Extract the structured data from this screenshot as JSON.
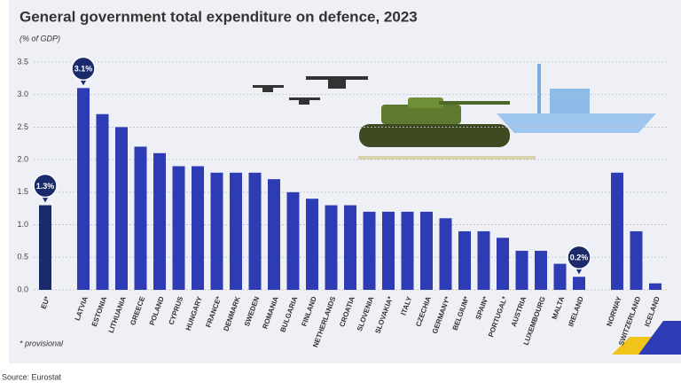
{
  "chart_data": {
    "type": "bar",
    "title": "General government total expenditure on defence, 2023",
    "subtitle": "(% of GDP)",
    "note": "* provisional",
    "source": "Source: Eurostat",
    "categories": [
      "EU*",
      "LATVIA",
      "ESTONIA",
      "LITHUANIA",
      "GREECE",
      "POLAND",
      "CYPRUS",
      "HUNGARY",
      "FRANCE*",
      "DENMARK",
      "SWEDEN",
      "ROMANIA",
      "BULGARIA",
      "FINLAND",
      "NETHERLANDS",
      "CROATIA",
      "SLOVENIA",
      "SLOVAKIA*",
      "ITALY",
      "CZECHIA",
      "GERMANY*",
      "BELGIUM*",
      "SPAIN*",
      "PORTUGAL*",
      "AUSTRIA",
      "LUXEMBOURG",
      "MALTA",
      "IRELAND",
      "NORWAY",
      "SWITZERLAND",
      "ICELAND"
    ],
    "values": [
      1.3,
      3.1,
      2.7,
      2.5,
      2.2,
      2.1,
      1.9,
      1.9,
      1.8,
      1.8,
      1.8,
      1.7,
      1.5,
      1.4,
      1.3,
      1.3,
      1.2,
      1.2,
      1.2,
      1.2,
      1.1,
      0.9,
      0.9,
      0.8,
      0.6,
      0.6,
      0.4,
      0.2,
      1.8,
      0.9,
      0.1
    ],
    "value_labels": [
      "1.3%",
      "3.1%",
      null,
      null,
      null,
      null,
      null,
      null,
      null,
      null,
      null,
      null,
      null,
      null,
      null,
      null,
      null,
      null,
      null,
      null,
      null,
      null,
      null,
      null,
      null,
      null,
      null,
      "0.2%",
      null,
      null,
      null
    ],
    "color": "#2d3cb4",
    "highlight_color": "#1b2a6b",
    "ylim": [
      0,
      3.5
    ],
    "yticks": [
      {
        "value": 0,
        "label": "0.0"
      },
      0.5,
      {
        "value": 1,
        "label": "1.0"
      },
      1.5,
      {
        "value": 2,
        "label": "2.0"
      },
      2.5,
      {
        "value": 3,
        "label": "3.0"
      },
      3.5
    ],
    "grid": true
  }
}
